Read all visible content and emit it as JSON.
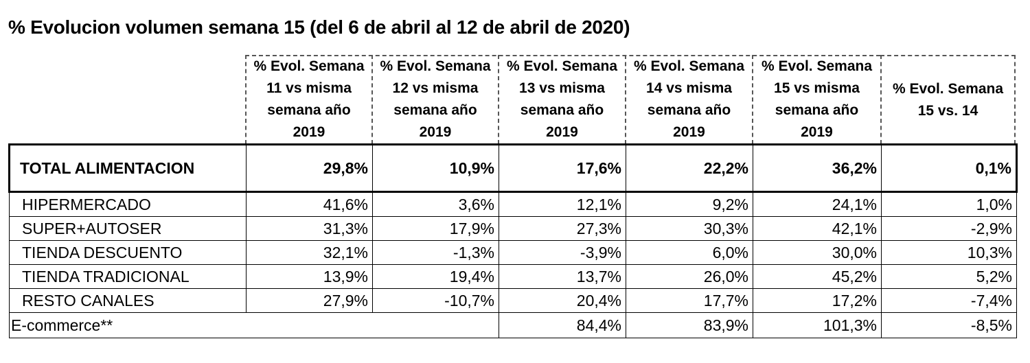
{
  "title": "% Evolucion volumen  semana 15 (del 6 de abril al 12 de abril de 2020)",
  "columns": [
    "% Evol. Semana\n11  vs misma\nsemana año\n2019",
    "% Evol. Semana\n12  vs misma\nsemana año\n2019",
    "% Evol. Semana\n13  vs misma\nsemana año\n2019",
    "% Evol. Semana\n14  vs misma\nsemana año\n2019",
    "% Evol. Semana\n15  vs misma\nsemana año\n2019",
    "% Evol. Semana\n15 vs. 14"
  ],
  "total": {
    "label": "TOTAL ALIMENTACION",
    "values": [
      "29,8%",
      "10,9%",
      "17,6%",
      "22,2%",
      "36,2%",
      "0,1%"
    ]
  },
  "rows": [
    {
      "label": "HIPERMERCADO",
      "values": [
        "41,6%",
        "3,6%",
        "12,1%",
        "9,2%",
        "24,1%",
        "1,0%"
      ]
    },
    {
      "label": "SUPER+AUTOSER",
      "values": [
        "31,3%",
        "17,9%",
        "27,3%",
        "30,3%",
        "42,1%",
        "-2,9%"
      ]
    },
    {
      "label": "TIENDA DESCUENTO",
      "values": [
        "32,1%",
        "-1,3%",
        "-3,9%",
        "6,0%",
        "30,0%",
        "10,3%"
      ]
    },
    {
      "label": "TIENDA TRADICIONAL",
      "values": [
        "13,9%",
        "19,4%",
        "13,7%",
        "26,0%",
        "45,2%",
        "5,2%"
      ]
    },
    {
      "label": "RESTO CANALES",
      "values": [
        "27,9%",
        "-10,7%",
        "20,4%",
        "17,7%",
        "17,2%",
        "-7,4%"
      ]
    }
  ],
  "ecommerce": {
    "label": "E-commerce**",
    "values": [
      "84,4%",
      "83,9%",
      "101,3%",
      "-8,5%"
    ]
  }
}
